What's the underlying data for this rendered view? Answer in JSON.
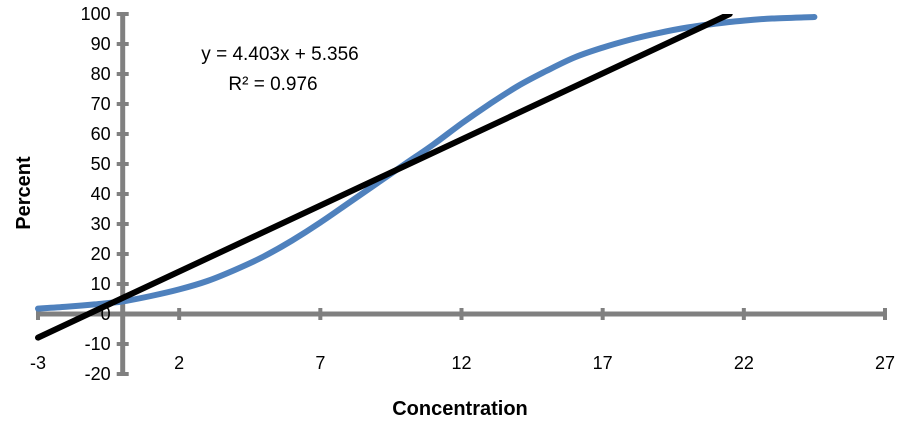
{
  "chart_data": {
    "type": "line",
    "title": "",
    "xlabel": "Concentration",
    "ylabel": "Percent",
    "xlim": [
      -3,
      27
    ],
    "ylim": [
      -20,
      100
    ],
    "x_ticks": [
      -3,
      2,
      7,
      12,
      17,
      22,
      27
    ],
    "y_ticks": [
      100,
      90,
      80,
      70,
      60,
      50,
      40,
      30,
      20,
      10,
      0,
      -10,
      -20
    ],
    "grid": false,
    "legend": "none",
    "series": [
      {
        "color": "#4f81bd",
        "x": [
          -3,
          -2,
          -1,
          0,
          1,
          2,
          3,
          4,
          5,
          6,
          7,
          8,
          9,
          10,
          11,
          12,
          13,
          14,
          15,
          16,
          17,
          18,
          19,
          20,
          21,
          22,
          23,
          24.5
        ],
        "y": [
          1.8,
          2.4,
          3.2,
          4.2,
          6.0,
          8.2,
          11.0,
          14.8,
          19.2,
          24.5,
          30.5,
          37,
          43.5,
          50,
          56.5,
          63.5,
          70,
          76,
          81,
          85.5,
          88.8,
          91.5,
          93.7,
          95.5,
          96.8,
          97.8,
          98.5,
          99
        ]
      },
      {
        "color": "#000000",
        "x": [
          -3,
          21.5
        ],
        "y": [
          -7.85,
          100
        ]
      }
    ],
    "trendline_equation": "y = 4.403x + 5.356",
    "r_squared": "R² = 0.976"
  }
}
